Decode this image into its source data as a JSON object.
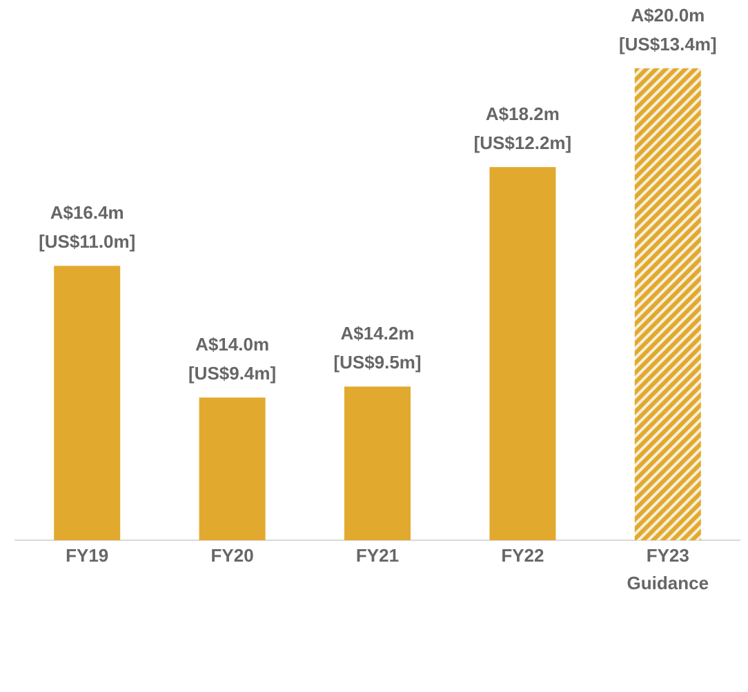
{
  "chart_data": {
    "type": "bar",
    "categories": [
      "FY19",
      "FY20",
      "FY21",
      "FY22",
      "FY23\nGuidance"
    ],
    "values": [
      16.4,
      14.0,
      14.2,
      18.2,
      20.0
    ],
    "value_labels": [
      "A$16.4m",
      "A$14.0m",
      "A$14.2m",
      "A$18.2m",
      "A$20.0m"
    ],
    "secondary_labels": [
      "[US$11.0m]",
      "[US$9.4m]",
      "[US$9.5m]",
      "[US$12.2m]",
      "[US$13.4m]"
    ],
    "hatched": [
      false,
      false,
      false,
      false,
      true
    ],
    "color": "#e2a92f",
    "ylim": [
      11.4,
      20.0
    ]
  }
}
